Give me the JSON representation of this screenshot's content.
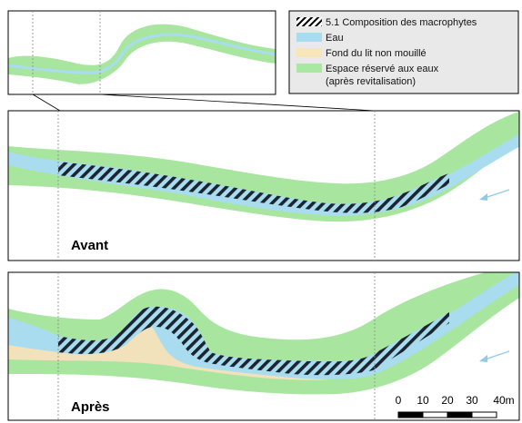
{
  "legend": {
    "items": [
      {
        "key": "macrophytes",
        "label": "5.1 Composition des macrophytes",
        "swatch": "hatch"
      },
      {
        "key": "water",
        "label": "Eau",
        "swatch": "#a9dcef"
      },
      {
        "key": "dry_bed",
        "label": "Fond du lit non mouillé",
        "swatch": "#f7e6ba"
      },
      {
        "key": "reserved",
        "label": "Espace réservé aux eaux",
        "swatch": "#a9e8a3"
      }
    ],
    "reserved_note": "(après revitalisation)"
  },
  "panels": {
    "before_label": "Avant",
    "after_label": "Après"
  },
  "scale": {
    "ticks": [
      "0",
      "10",
      "20",
      "30",
      "40m"
    ]
  },
  "colors": {
    "water": "#a9dcef",
    "dry_bed": "#f2e2bb",
    "reserved": "#a8e6a0",
    "hatch": "#1b2530",
    "flow_arrow": "#8fcbe8",
    "frame": "#000000",
    "dotted": "#8a8a8a",
    "legend_bg": "#e9e9e9"
  },
  "icons": {
    "flow": "flow-direction-arrow-icon"
  }
}
